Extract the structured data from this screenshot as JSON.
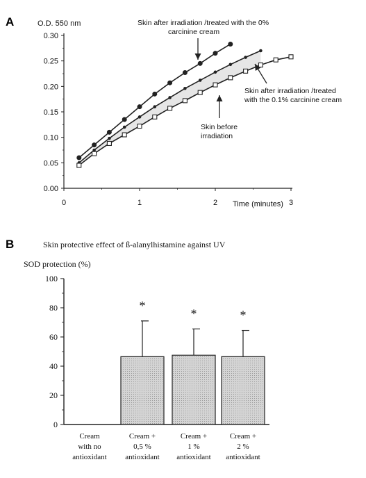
{
  "chart_data": [
    {
      "panel": "A",
      "type": "line",
      "ylabel": "O.D. 550 nm",
      "xlabel": "Time (minutes)",
      "xlim": [
        0,
        3
      ],
      "ylim": [
        0,
        0.3
      ],
      "xticks": [
        "0",
        "1",
        "2",
        "3"
      ],
      "yticks": [
        "0.00",
        "0.05",
        "0.10",
        "0.15",
        "0.20",
        "0.25",
        "0.30"
      ],
      "shaded_between": [
        "middle",
        "lower"
      ],
      "series": [
        {
          "key": "upper",
          "marker": "filled-circle",
          "x": [
            0.2,
            0.4,
            0.6,
            0.8,
            1.0,
            1.2,
            1.4,
            1.6,
            1.8,
            2.0,
            2.2
          ],
          "y": [
            0.06,
            0.085,
            0.11,
            0.135,
            0.16,
            0.185,
            0.207,
            0.227,
            0.245,
            0.265,
            0.283
          ]
        },
        {
          "key": "middle",
          "marker": "dot",
          "x": [
            0.2,
            0.4,
            0.6,
            0.8,
            1.0,
            1.2,
            1.4,
            1.6,
            1.8,
            2.0,
            2.2,
            2.4,
            2.6
          ],
          "y": [
            0.05,
            0.075,
            0.098,
            0.12,
            0.14,
            0.16,
            0.178,
            0.196,
            0.212,
            0.228,
            0.243,
            0.257,
            0.27
          ]
        },
        {
          "key": "lower",
          "marker": "open-square",
          "x": [
            0.2,
            0.4,
            0.6,
            0.8,
            1.0,
            1.2,
            1.4,
            1.6,
            1.8,
            2.0,
            2.2,
            2.4,
            2.6,
            2.8,
            3.0
          ],
          "y": [
            0.045,
            0.068,
            0.088,
            0.105,
            0.122,
            0.14,
            0.157,
            0.172,
            0.188,
            0.203,
            0.217,
            0.23,
            0.242,
            0.252,
            0.258
          ]
        }
      ],
      "annotations": [
        {
          "key": "upper",
          "lines": [
            "Skin after irradiation /treated with the 0%",
            "carcinine cream"
          ]
        },
        {
          "key": "shaded",
          "lines": [
            "Skin after irradiation /treated",
            "with the 0.1% carcinine cream"
          ]
        },
        {
          "key": "lower",
          "lines": [
            "Skin before",
            "irradiation"
          ]
        }
      ]
    },
    {
      "panel": "B",
      "type": "bar",
      "title": "Skin protective effect of ß-alanylhistamine against UV",
      "ylabel": "SOD protection (%)",
      "ylim": [
        0,
        100
      ],
      "yticks": [
        "0",
        "20",
        "40",
        "60",
        "80",
        "100"
      ],
      "categories": [
        [
          "Cream",
          "with no",
          "antioxidant"
        ],
        [
          "Cream +",
          "0,5 %",
          "antioxidant"
        ],
        [
          "Cream +",
          "1 %",
          "antioxidant"
        ],
        [
          "Cream +",
          "2 %",
          "antioxidant"
        ]
      ],
      "values": [
        0,
        46.5,
        47.5,
        46.5
      ],
      "errors": [
        0,
        24.5,
        18,
        18
      ],
      "significance": [
        "",
        "*",
        "*",
        "*"
      ]
    }
  ],
  "figure": {
    "colors": {
      "ink": "#222222",
      "shade": "#e6e6e6",
      "bar_fill": "#d4d4d4"
    }
  }
}
